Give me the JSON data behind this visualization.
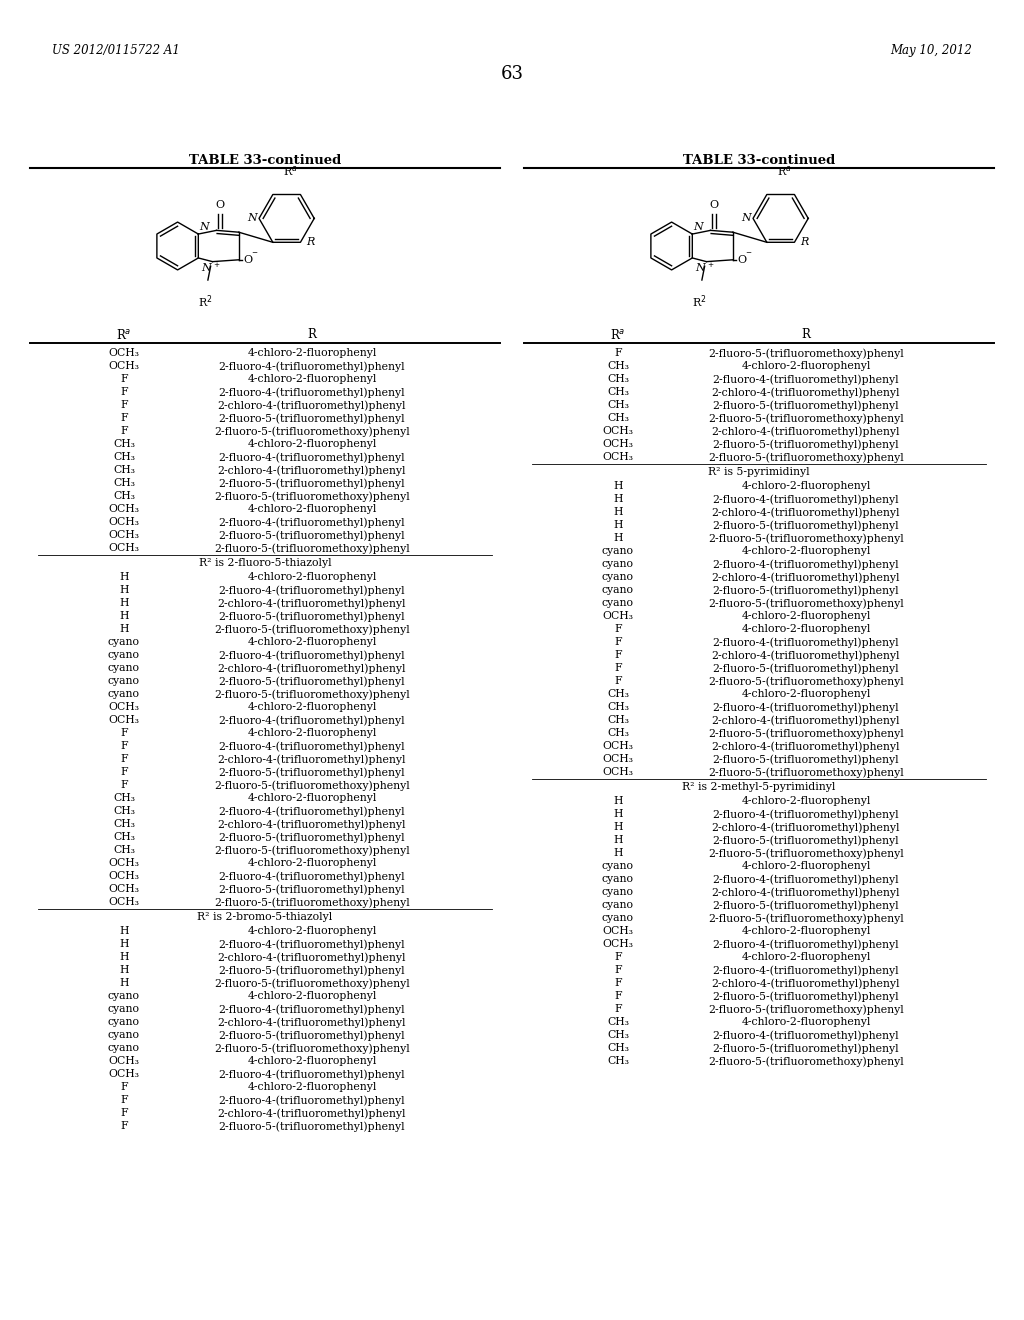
{
  "page_header_left": "US 2012/0115722 A1",
  "page_header_right": "May 10, 2012",
  "page_number": "63",
  "table_title": "TABLE 33-continued",
  "background_color": "#ffffff",
  "text_color": "#000000",
  "left_rows": [
    [
      "OCH₃",
      "4-chloro-2-fluorophenyl"
    ],
    [
      "OCH₃",
      "2-fluoro-4-(trifluoromethyl)phenyl"
    ],
    [
      "F",
      "4-chloro-2-fluorophenyl"
    ],
    [
      "F",
      "2-fluoro-4-(trifluoromethyl)phenyl"
    ],
    [
      "F",
      "2-chloro-4-(trifluoromethyl)phenyl"
    ],
    [
      "F",
      "2-fluoro-5-(trifluoromethyl)phenyl"
    ],
    [
      "F",
      "2-fluoro-5-(trifluoromethoxy)phenyl"
    ],
    [
      "CH₃",
      "4-chloro-2-fluorophenyl"
    ],
    [
      "CH₃",
      "2-fluoro-4-(trifluoromethyl)phenyl"
    ],
    [
      "CH₃",
      "2-chloro-4-(trifluoromethyl)phenyl"
    ],
    [
      "CH₃",
      "2-fluoro-5-(trifluoromethyl)phenyl"
    ],
    [
      "CH₃",
      "2-fluoro-5-(trifluoromethoxy)phenyl"
    ],
    [
      "OCH₃",
      "4-chloro-2-fluorophenyl"
    ],
    [
      "OCH₃",
      "2-fluoro-4-(trifluoromethyl)phenyl"
    ],
    [
      "OCH₃",
      "2-fluoro-5-(trifluoromethyl)phenyl"
    ],
    [
      "OCH₃",
      "2-fluoro-5-(trifluoromethoxy)phenyl"
    ],
    [
      "SECTION",
      "R² is 2-fluoro-5-thiazolyl"
    ],
    [
      "H",
      "4-chloro-2-fluorophenyl"
    ],
    [
      "H",
      "2-fluoro-4-(trifluoromethyl)phenyl"
    ],
    [
      "H",
      "2-chloro-4-(trifluoromethyl)phenyl"
    ],
    [
      "H",
      "2-fluoro-5-(trifluoromethyl)phenyl"
    ],
    [
      "H",
      "2-fluoro-5-(trifluoromethoxy)phenyl"
    ],
    [
      "cyano",
      "4-chloro-2-fluorophenyl"
    ],
    [
      "cyano",
      "2-fluoro-4-(trifluoromethyl)phenyl"
    ],
    [
      "cyano",
      "2-chloro-4-(trifluoromethyl)phenyl"
    ],
    [
      "cyano",
      "2-fluoro-5-(trifluoromethyl)phenyl"
    ],
    [
      "cyano",
      "2-fluoro-5-(trifluoromethoxy)phenyl"
    ],
    [
      "OCH₃",
      "4-chloro-2-fluorophenyl"
    ],
    [
      "OCH₃",
      "2-fluoro-4-(trifluoromethyl)phenyl"
    ],
    [
      "F",
      "4-chloro-2-fluorophenyl"
    ],
    [
      "F",
      "2-fluoro-4-(trifluoromethyl)phenyl"
    ],
    [
      "F",
      "2-chloro-4-(trifluoromethyl)phenyl"
    ],
    [
      "F",
      "2-fluoro-5-(trifluoromethyl)phenyl"
    ],
    [
      "F",
      "2-fluoro-5-(trifluoromethoxy)phenyl"
    ],
    [
      "CH₃",
      "4-chloro-2-fluorophenyl"
    ],
    [
      "CH₃",
      "2-fluoro-4-(trifluoromethyl)phenyl"
    ],
    [
      "CH₃",
      "2-chloro-4-(trifluoromethyl)phenyl"
    ],
    [
      "CH₃",
      "2-fluoro-5-(trifluoromethyl)phenyl"
    ],
    [
      "CH₃",
      "2-fluoro-5-(trifluoromethoxy)phenyl"
    ],
    [
      "OCH₃",
      "4-chloro-2-fluorophenyl"
    ],
    [
      "OCH₃",
      "2-fluoro-4-(trifluoromethyl)phenyl"
    ],
    [
      "OCH₃",
      "2-fluoro-5-(trifluoromethyl)phenyl"
    ],
    [
      "OCH₃",
      "2-fluoro-5-(trifluoromethoxy)phenyl"
    ],
    [
      "SECTION",
      "R² is 2-bromo-5-thiazolyl"
    ],
    [
      "H",
      "4-chloro-2-fluorophenyl"
    ],
    [
      "H",
      "2-fluoro-4-(trifluoromethyl)phenyl"
    ],
    [
      "H",
      "2-chloro-4-(trifluoromethyl)phenyl"
    ],
    [
      "H",
      "2-fluoro-5-(trifluoromethyl)phenyl"
    ],
    [
      "H",
      "2-fluoro-5-(trifluoromethoxy)phenyl"
    ],
    [
      "cyano",
      "4-chloro-2-fluorophenyl"
    ],
    [
      "cyano",
      "2-fluoro-4-(trifluoromethyl)phenyl"
    ],
    [
      "cyano",
      "2-chloro-4-(trifluoromethyl)phenyl"
    ],
    [
      "cyano",
      "2-fluoro-5-(trifluoromethyl)phenyl"
    ],
    [
      "cyano",
      "2-fluoro-5-(trifluoromethoxy)phenyl"
    ],
    [
      "OCH₃",
      "4-chloro-2-fluorophenyl"
    ],
    [
      "OCH₃",
      "2-fluoro-4-(trifluoromethyl)phenyl"
    ],
    [
      "F",
      "4-chloro-2-fluorophenyl"
    ],
    [
      "F",
      "2-fluoro-4-(trifluoromethyl)phenyl"
    ],
    [
      "F",
      "2-chloro-4-(trifluoromethyl)phenyl"
    ],
    [
      "F",
      "2-fluoro-5-(trifluoromethyl)phenyl"
    ]
  ],
  "right_rows": [
    [
      "F",
      "2-fluoro-5-(trifluoromethoxy)phenyl"
    ],
    [
      "CH₃",
      "4-chloro-2-fluorophenyl"
    ],
    [
      "CH₃",
      "2-fluoro-4-(trifluoromethyl)phenyl"
    ],
    [
      "CH₃",
      "2-chloro-4-(trifluoromethyl)phenyl"
    ],
    [
      "CH₃",
      "2-fluoro-5-(trifluoromethyl)phenyl"
    ],
    [
      "CH₃",
      "2-fluoro-5-(trifluoromethoxy)phenyl"
    ],
    [
      "OCH₃",
      "2-chloro-4-(trifluoromethyl)phenyl"
    ],
    [
      "OCH₃",
      "2-fluoro-5-(trifluoromethyl)phenyl"
    ],
    [
      "OCH₃",
      "2-fluoro-5-(trifluoromethoxy)phenyl"
    ],
    [
      "SECTION",
      "R² is 5-pyrimidinyl"
    ],
    [
      "H",
      "4-chloro-2-fluorophenyl"
    ],
    [
      "H",
      "2-fluoro-4-(trifluoromethyl)phenyl"
    ],
    [
      "H",
      "2-chloro-4-(trifluoromethyl)phenyl"
    ],
    [
      "H",
      "2-fluoro-5-(trifluoromethyl)phenyl"
    ],
    [
      "H",
      "2-fluoro-5-(trifluoromethoxy)phenyl"
    ],
    [
      "cyano",
      "4-chloro-2-fluorophenyl"
    ],
    [
      "cyano",
      "2-fluoro-4-(trifluoromethyl)phenyl"
    ],
    [
      "cyano",
      "2-chloro-4-(trifluoromethyl)phenyl"
    ],
    [
      "cyano",
      "2-fluoro-5-(trifluoromethyl)phenyl"
    ],
    [
      "cyano",
      "2-fluoro-5-(trifluoromethoxy)phenyl"
    ],
    [
      "OCH₃",
      "4-chloro-2-fluorophenyl"
    ],
    [
      "F",
      "4-chloro-2-fluorophenyl"
    ],
    [
      "F",
      "2-fluoro-4-(trifluoromethyl)phenyl"
    ],
    [
      "F",
      "2-chloro-4-(trifluoromethyl)phenyl"
    ],
    [
      "F",
      "2-fluoro-5-(trifluoromethyl)phenyl"
    ],
    [
      "F",
      "2-fluoro-5-(trifluoromethoxy)phenyl"
    ],
    [
      "CH₃",
      "4-chloro-2-fluorophenyl"
    ],
    [
      "CH₃",
      "2-fluoro-4-(trifluoromethyl)phenyl"
    ],
    [
      "CH₃",
      "2-chloro-4-(trifluoromethyl)phenyl"
    ],
    [
      "CH₃",
      "2-fluoro-5-(trifluoromethoxy)phenyl"
    ],
    [
      "OCH₃",
      "2-chloro-4-(trifluoromethyl)phenyl"
    ],
    [
      "OCH₃",
      "2-fluoro-5-(trifluoromethyl)phenyl"
    ],
    [
      "OCH₃",
      "2-fluoro-5-(trifluoromethoxy)phenyl"
    ],
    [
      "SECTION",
      "R² is 2-methyl-5-pyrimidinyl"
    ],
    [
      "H",
      "4-chloro-2-fluorophenyl"
    ],
    [
      "H",
      "2-fluoro-4-(trifluoromethyl)phenyl"
    ],
    [
      "H",
      "2-chloro-4-(trifluoromethyl)phenyl"
    ],
    [
      "H",
      "2-fluoro-5-(trifluoromethyl)phenyl"
    ],
    [
      "H",
      "2-fluoro-5-(trifluoromethoxy)phenyl"
    ],
    [
      "cyano",
      "4-chloro-2-fluorophenyl"
    ],
    [
      "cyano",
      "2-fluoro-4-(trifluoromethyl)phenyl"
    ],
    [
      "cyano",
      "2-chloro-4-(trifluoromethyl)phenyl"
    ],
    [
      "cyano",
      "2-fluoro-5-(trifluoromethyl)phenyl"
    ],
    [
      "cyano",
      "2-fluoro-5-(trifluoromethoxy)phenyl"
    ],
    [
      "OCH₃",
      "4-chloro-2-fluorophenyl"
    ],
    [
      "OCH₃",
      "2-fluoro-4-(trifluoromethyl)phenyl"
    ],
    [
      "F",
      "4-chloro-2-fluorophenyl"
    ],
    [
      "F",
      "2-fluoro-4-(trifluoromethyl)phenyl"
    ],
    [
      "F",
      "2-chloro-4-(trifluoromethyl)phenyl"
    ],
    [
      "F",
      "2-fluoro-5-(trifluoromethyl)phenyl"
    ],
    [
      "F",
      "2-fluoro-5-(trifluoromethoxy)phenyl"
    ],
    [
      "CH₃",
      "4-chloro-2-fluorophenyl"
    ],
    [
      "CH₃",
      "2-fluoro-4-(trifluoromethyl)phenyl"
    ],
    [
      "CH₃",
      "2-fluoro-5-(trifluoromethyl)phenyl"
    ],
    [
      "CH₃",
      "2-fluoro-5-(trifluoromethoxy)phenyl"
    ]
  ]
}
